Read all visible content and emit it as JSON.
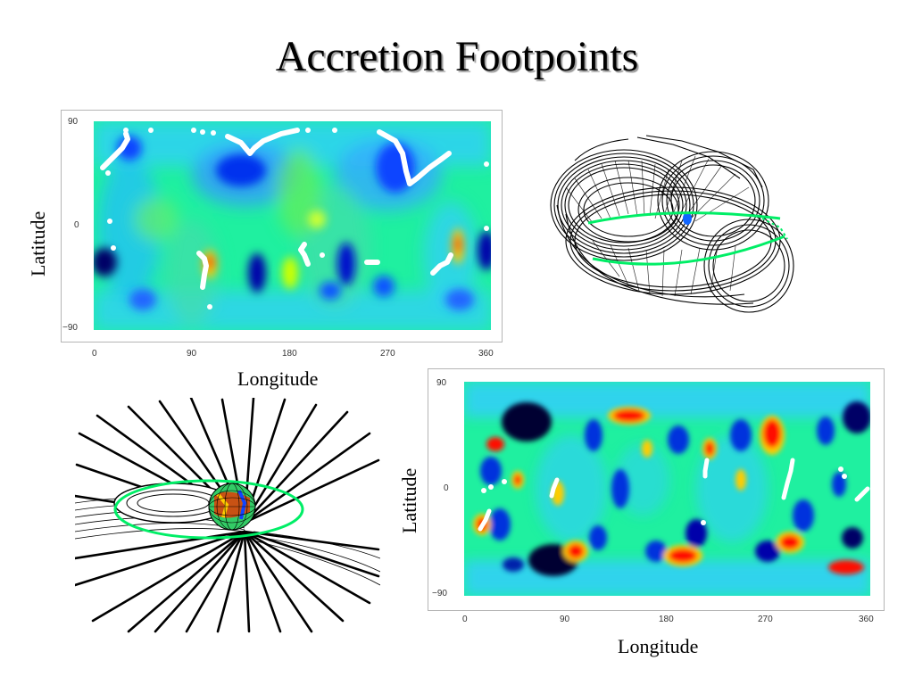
{
  "slide": {
    "title": "Accretion Footpoints"
  },
  "map_top": {
    "ylabel": "Latitude",
    "xlabel": "Longitude",
    "yticks": [
      "90",
      "0",
      "−90"
    ],
    "xticks": [
      "0",
      "90",
      "180",
      "270",
      "360"
    ]
  },
  "map_bottom": {
    "ylabel": "Latitude",
    "xlabel": "Longitude",
    "yticks": [
      "90",
      "0",
      "−90"
    ],
    "xticks": [
      "0",
      "90",
      "180",
      "270",
      "360"
    ]
  },
  "colors": {
    "background_map": "#00ff99",
    "field_lines": "#000000",
    "footpoints": "#ffffff",
    "ring": "#00ee66"
  }
}
